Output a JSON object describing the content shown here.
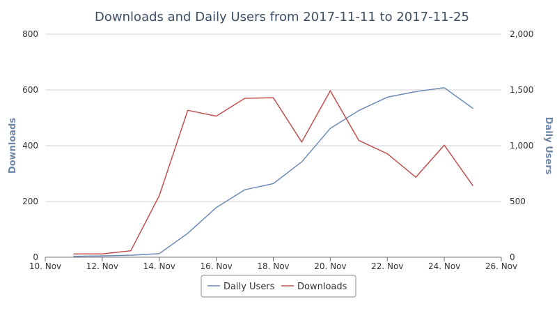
{
  "chart_data": {
    "type": "line",
    "title": "Downloads and Daily Users from 2017-11-11 to 2017-11-25",
    "x_axis": {
      "type": "date",
      "range": [
        "2017-11-10",
        "2017-11-26"
      ],
      "tick_labels": [
        "10. Nov",
        "12. Nov",
        "14. Nov",
        "16. Nov",
        "18. Nov",
        "20. Nov",
        "22. Nov",
        "24. Nov",
        "26. Nov"
      ]
    },
    "y_left": {
      "label": "Downloads",
      "range": [
        0,
        800
      ],
      "tick_labels": [
        "0",
        "200",
        "400",
        "600",
        "800"
      ]
    },
    "y_right": {
      "label": "Daily Users",
      "range": [
        0,
        2000
      ],
      "tick_labels": [
        "0",
        "500",
        "1,000",
        "1,500",
        "2,000"
      ]
    },
    "x": [
      "2017-11-11",
      "2017-11-12",
      "2017-11-13",
      "2017-11-14",
      "2017-11-15",
      "2017-11-16",
      "2017-11-17",
      "2017-11-18",
      "2017-11-19",
      "2017-11-20",
      "2017-11-21",
      "2017-11-22",
      "2017-11-23",
      "2017-11-24",
      "2017-11-25"
    ],
    "series": [
      {
        "name": "Daily Users",
        "axis": "right",
        "color": "#6a8ab5",
        "values": [
          8,
          12,
          18,
          32,
          215,
          445,
          605,
          660,
          855,
          1155,
          1315,
          1435,
          1485,
          1520,
          1335
        ]
      },
      {
        "name": "Downloads",
        "axis": "left",
        "color": "#c0504d",
        "values": [
          12,
          12,
          23,
          221,
          527,
          506,
          570,
          572,
          413,
          597,
          419,
          371,
          287,
          402,
          257
        ]
      }
    ],
    "grid": true,
    "legend": {
      "position": "bottom-center",
      "entries": [
        "Daily Users",
        "Downloads"
      ]
    }
  }
}
